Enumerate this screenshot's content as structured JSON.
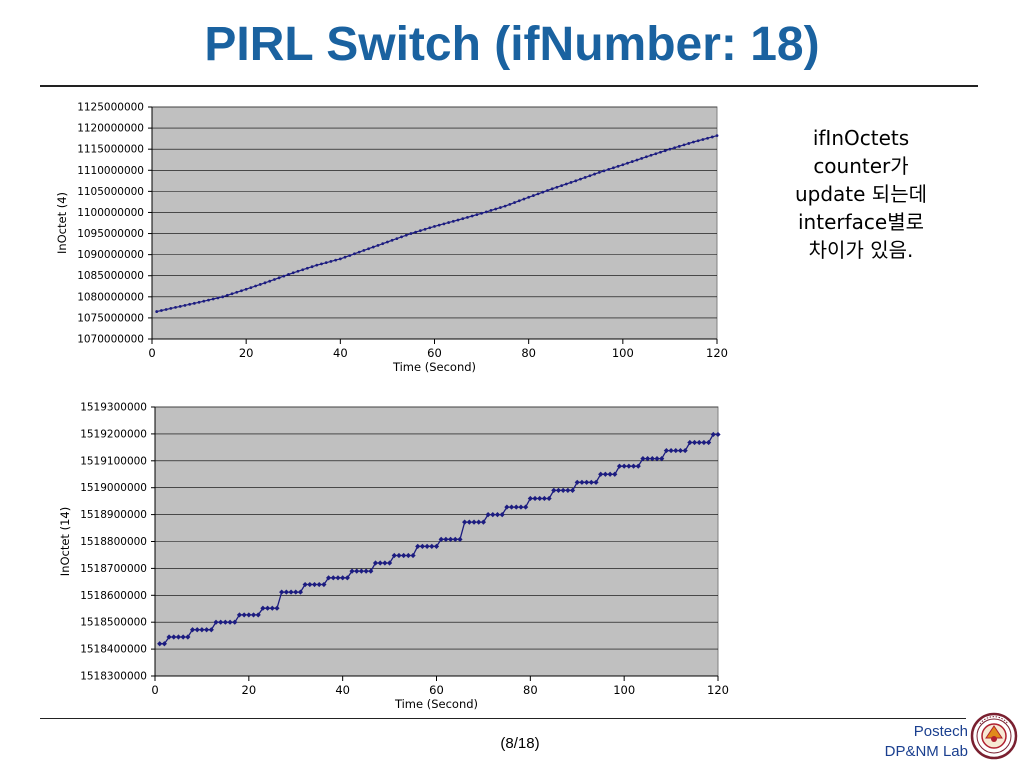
{
  "title": "PIRL Switch (ifNumber: 18)",
  "side_note": {
    "lines": [
      "ifInOctets",
      "counter가",
      "update 되는데",
      "interface별로",
      "차이가 있음."
    ]
  },
  "footer": {
    "page": "(8/18)",
    "org_line1": "Postech",
    "org_line2": "DP&NM Lab",
    "logo_icon": "postech-university-seal-icon"
  },
  "colors": {
    "title": "#1a62a0",
    "plot_bg": "#c0c0c0",
    "series": "#1c1c80",
    "footer_text": "#1a3f8f"
  },
  "chart_data": [
    {
      "type": "line",
      "xlabel": "Time (Second)",
      "ylabel": "InOctet (4)",
      "xlim": [
        0,
        120
      ],
      "ylim": [
        1070000000,
        1125000000
      ],
      "x_ticks": [
        0,
        20,
        40,
        60,
        80,
        100,
        120
      ],
      "y_ticks": [
        1070000000,
        1075000000,
        1080000000,
        1085000000,
        1090000000,
        1095000000,
        1100000000,
        1105000000,
        1110000000,
        1115000000,
        1120000000,
        1125000000
      ],
      "y_tick_labels": [
        "1070000000",
        "1075000000",
        "1080000000",
        "1085000000",
        "1090000000",
        "1095000000",
        "1100000000",
        "1105000000",
        "1110000000",
        "1115000000",
        "1120000000",
        "1125000000"
      ],
      "x_tick_labels": [
        "0",
        "20",
        "40",
        "60",
        "80",
        "100",
        "120"
      ],
      "grid": true,
      "legend": "none",
      "series": [
        {
          "x": [
            1,
            5,
            10,
            15,
            20,
            25,
            30,
            35,
            40,
            45,
            50,
            55,
            60,
            65,
            70,
            75,
            80,
            85,
            90,
            95,
            100,
            105,
            110,
            115,
            120
          ],
          "y": [
            1076500000,
            1077500000,
            1078700000,
            1080000000,
            1081800000,
            1083700000,
            1085700000,
            1087500000,
            1089000000,
            1091000000,
            1093000000,
            1095000000,
            1096700000,
            1098200000,
            1099800000,
            1101500000,
            1103600000,
            1105600000,
            1107500000,
            1109500000,
            1111300000,
            1113200000,
            1115000000,
            1116700000,
            1118200000
          ]
        }
      ]
    },
    {
      "type": "line",
      "xlabel": "Time (Second)",
      "ylabel": "InOctet (14)",
      "xlim": [
        0,
        120
      ],
      "ylim": [
        1518300000,
        1519300000
      ],
      "x_ticks": [
        0,
        20,
        40,
        60,
        80,
        100,
        120
      ],
      "y_ticks": [
        1518300000,
        1518400000,
        1518500000,
        1518600000,
        1518700000,
        1518800000,
        1518900000,
        1519000000,
        1519100000,
        1519200000,
        1519300000
      ],
      "y_tick_labels": [
        "1518300000",
        "1518400000",
        "1518500000",
        "1518600000",
        "1518700000",
        "1518800000",
        "1518900000",
        "1519000000",
        "1519100000",
        "1519200000",
        "1519300000"
      ],
      "x_tick_labels": [
        "0",
        "20",
        "40",
        "60",
        "80",
        "100",
        "120"
      ],
      "grid": true,
      "legend": "none",
      "series": [
        {
          "steps": [
            {
              "x_start": 1,
              "x_end": 2,
              "y": 1518420000
            },
            {
              "x_start": 3,
              "x_end": 7,
              "y": 1518445000
            },
            {
              "x_start": 8,
              "x_end": 12,
              "y": 1518472000
            },
            {
              "x_start": 13,
              "x_end": 17,
              "y": 1518500000
            },
            {
              "x_start": 18,
              "x_end": 22,
              "y": 1518527000
            },
            {
              "x_start": 23,
              "x_end": 26,
              "y": 1518552000
            },
            {
              "x_start": 27,
              "x_end": 31,
              "y": 1518612000
            },
            {
              "x_start": 32,
              "x_end": 36,
              "y": 1518640000
            },
            {
              "x_start": 37,
              "x_end": 41,
              "y": 1518665000
            },
            {
              "x_start": 42,
              "x_end": 46,
              "y": 1518690000
            },
            {
              "x_start": 47,
              "x_end": 50,
              "y": 1518720000
            },
            {
              "x_start": 51,
              "x_end": 55,
              "y": 1518748000
            },
            {
              "x_start": 56,
              "x_end": 60,
              "y": 1518782000
            },
            {
              "x_start": 61,
              "x_end": 65,
              "y": 1518808000
            },
            {
              "x_start": 66,
              "x_end": 70,
              "y": 1518872000
            },
            {
              "x_start": 71,
              "x_end": 74,
              "y": 1518900000
            },
            {
              "x_start": 75,
              "x_end": 79,
              "y": 1518928000
            },
            {
              "x_start": 80,
              "x_end": 84,
              "y": 1518960000
            },
            {
              "x_start": 85,
              "x_end": 89,
              "y": 1518990000
            },
            {
              "x_start": 90,
              "x_end": 94,
              "y": 1519020000
            },
            {
              "x_start": 95,
              "x_end": 98,
              "y": 1519050000
            },
            {
              "x_start": 99,
              "x_end": 103,
              "y": 1519080000
            },
            {
              "x_start": 104,
              "x_end": 108,
              "y": 1519108000
            },
            {
              "x_start": 109,
              "x_end": 113,
              "y": 1519138000
            },
            {
              "x_start": 114,
              "x_end": 118,
              "y": 1519168000
            },
            {
              "x_start": 119,
              "x_end": 120,
              "y": 1519198000
            }
          ]
        }
      ]
    }
  ]
}
